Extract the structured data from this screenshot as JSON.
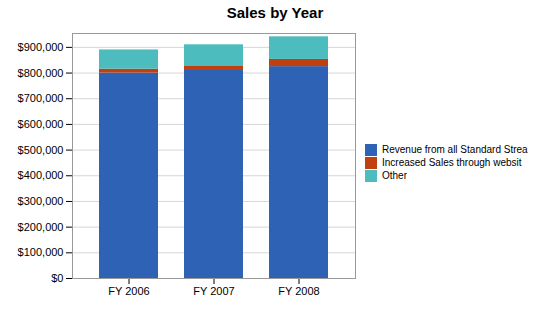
{
  "chart_data": {
    "type": "bar",
    "title": "Sales by Year",
    "categories": [
      "FY 2006",
      "FY 2007",
      "FY 2008"
    ],
    "series": [
      {
        "name": "Revenue from all Standard Strea",
        "color": "#2E62B5",
        "values": [
          800000,
          810000,
          825000
        ]
      },
      {
        "name": "Increased Sales through websit",
        "color": "#C04010",
        "values": [
          15000,
          18000,
          28000
        ]
      },
      {
        "name": "Other",
        "color": "#4DBCBE",
        "values": [
          75000,
          82000,
          88000
        ]
      }
    ],
    "stacked": true,
    "ylim": [
      0,
      954000
    ],
    "yticks": [
      {
        "value": 0,
        "label": "$0"
      },
      {
        "value": 100000,
        "label": "$100,000"
      },
      {
        "value": 200000,
        "label": "$200,000"
      },
      {
        "value": 300000,
        "label": "$300,000"
      },
      {
        "value": 400000,
        "label": "$400,000"
      },
      {
        "value": 500000,
        "label": "$500,000"
      },
      {
        "value": 600000,
        "label": "$600,000"
      },
      {
        "value": 700000,
        "label": "$700,000"
      },
      {
        "value": 800000,
        "label": "$800,000"
      },
      {
        "value": 900000,
        "label": "$900,000"
      }
    ],
    "grid": true,
    "legend": "right"
  }
}
